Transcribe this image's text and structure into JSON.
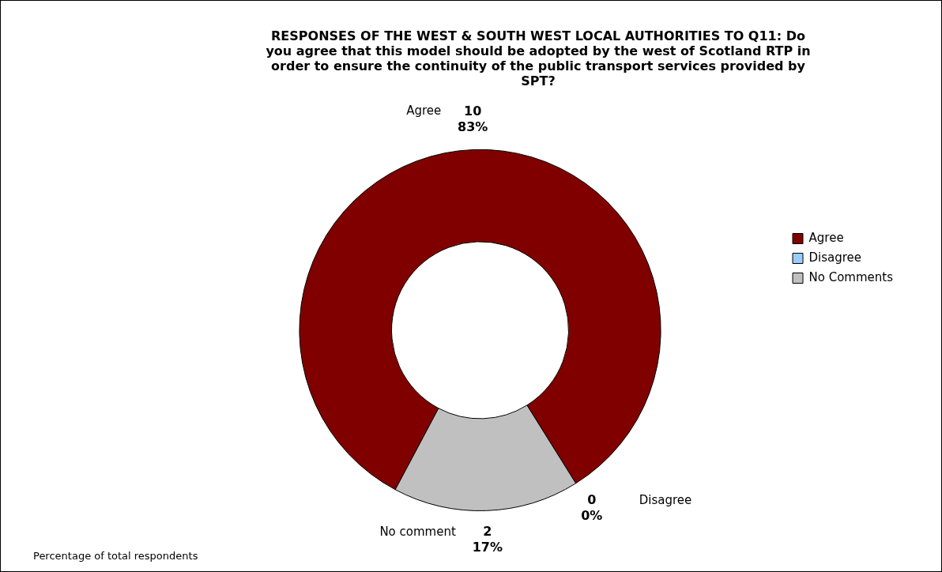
{
  "chart_data": {
    "type": "donut",
    "title": "RESPONSES OF THE WEST & SOUTH WEST LOCAL AUTHORITIES TO Q11: Do you agree that this model should be adopted by the west of Scotland RTP in order to ensure the continuity of the public transport services provided by SPT?",
    "categories": [
      "Agree",
      "Disagree",
      "No Comments"
    ],
    "values": [
      10,
      0,
      2
    ],
    "colors": [
      "#800000",
      "#99ccff",
      "#c0c0c0"
    ],
    "value_labels": [
      "10\n83%",
      "0\n0%",
      "2\n17%"
    ],
    "legend": "right",
    "annotations": [
      {
        "text": "Agree",
        "x": "Agree"
      },
      {
        "text": "Disagree",
        "x": "Disagree"
      },
      {
        "text": "No comment",
        "x": "No Comments"
      },
      "Percentage of total respondents"
    ]
  }
}
